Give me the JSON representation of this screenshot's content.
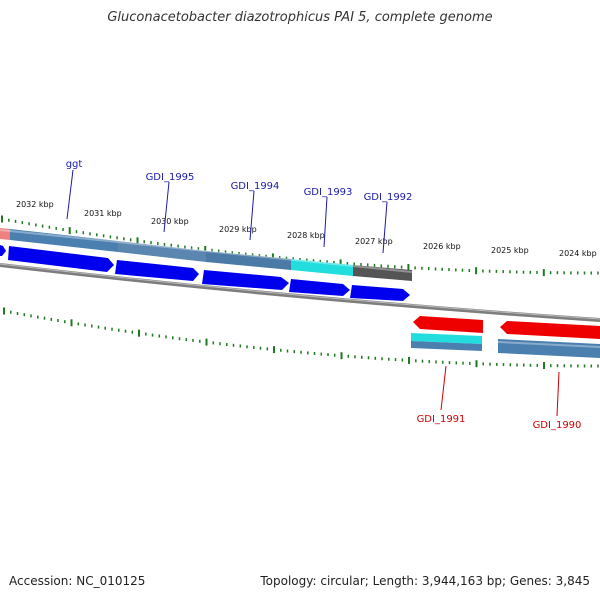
{
  "title": "Gluconacetobacter diazotrophicus PAI 5, complete genome",
  "footer": {
    "accession": "Accession: NC_010125",
    "summary": "Topology: circular; Length: 3,944,163 bp; Genes: 3,845"
  },
  "colors": {
    "forward_cds": "#0000ee",
    "reverse_cds": "#ee0000",
    "forward_label": "#1a1aa8",
    "reverse_label": "#cc0000",
    "tick": "#1f7a1f",
    "backbone": "#888888",
    "feature_blue": "#4a7fb0",
    "feature_cyan": "#22dddd",
    "feature_gray": "#555555",
    "feature_pink": "#f08080"
  },
  "ticks": [
    {
      "label": "2032 kbp"
    },
    {
      "label": "2031 kbp"
    },
    {
      "label": "2030 kbp"
    },
    {
      "label": "2029 kbp"
    },
    {
      "label": "2028 kbp"
    },
    {
      "label": "2027 kbp"
    },
    {
      "label": "2026 kbp"
    },
    {
      "label": "2025 kbp"
    },
    {
      "label": "2024 kbp"
    }
  ],
  "genes_forward": [
    {
      "label": "ggt"
    },
    {
      "label": "GDI_1995"
    },
    {
      "label": "GDI_1994"
    },
    {
      "label": "GDI_1993"
    },
    {
      "label": "GDI_1992"
    }
  ],
  "genes_reverse": [
    {
      "label": "GDI_1991"
    },
    {
      "label": "GDI_1990"
    }
  ]
}
